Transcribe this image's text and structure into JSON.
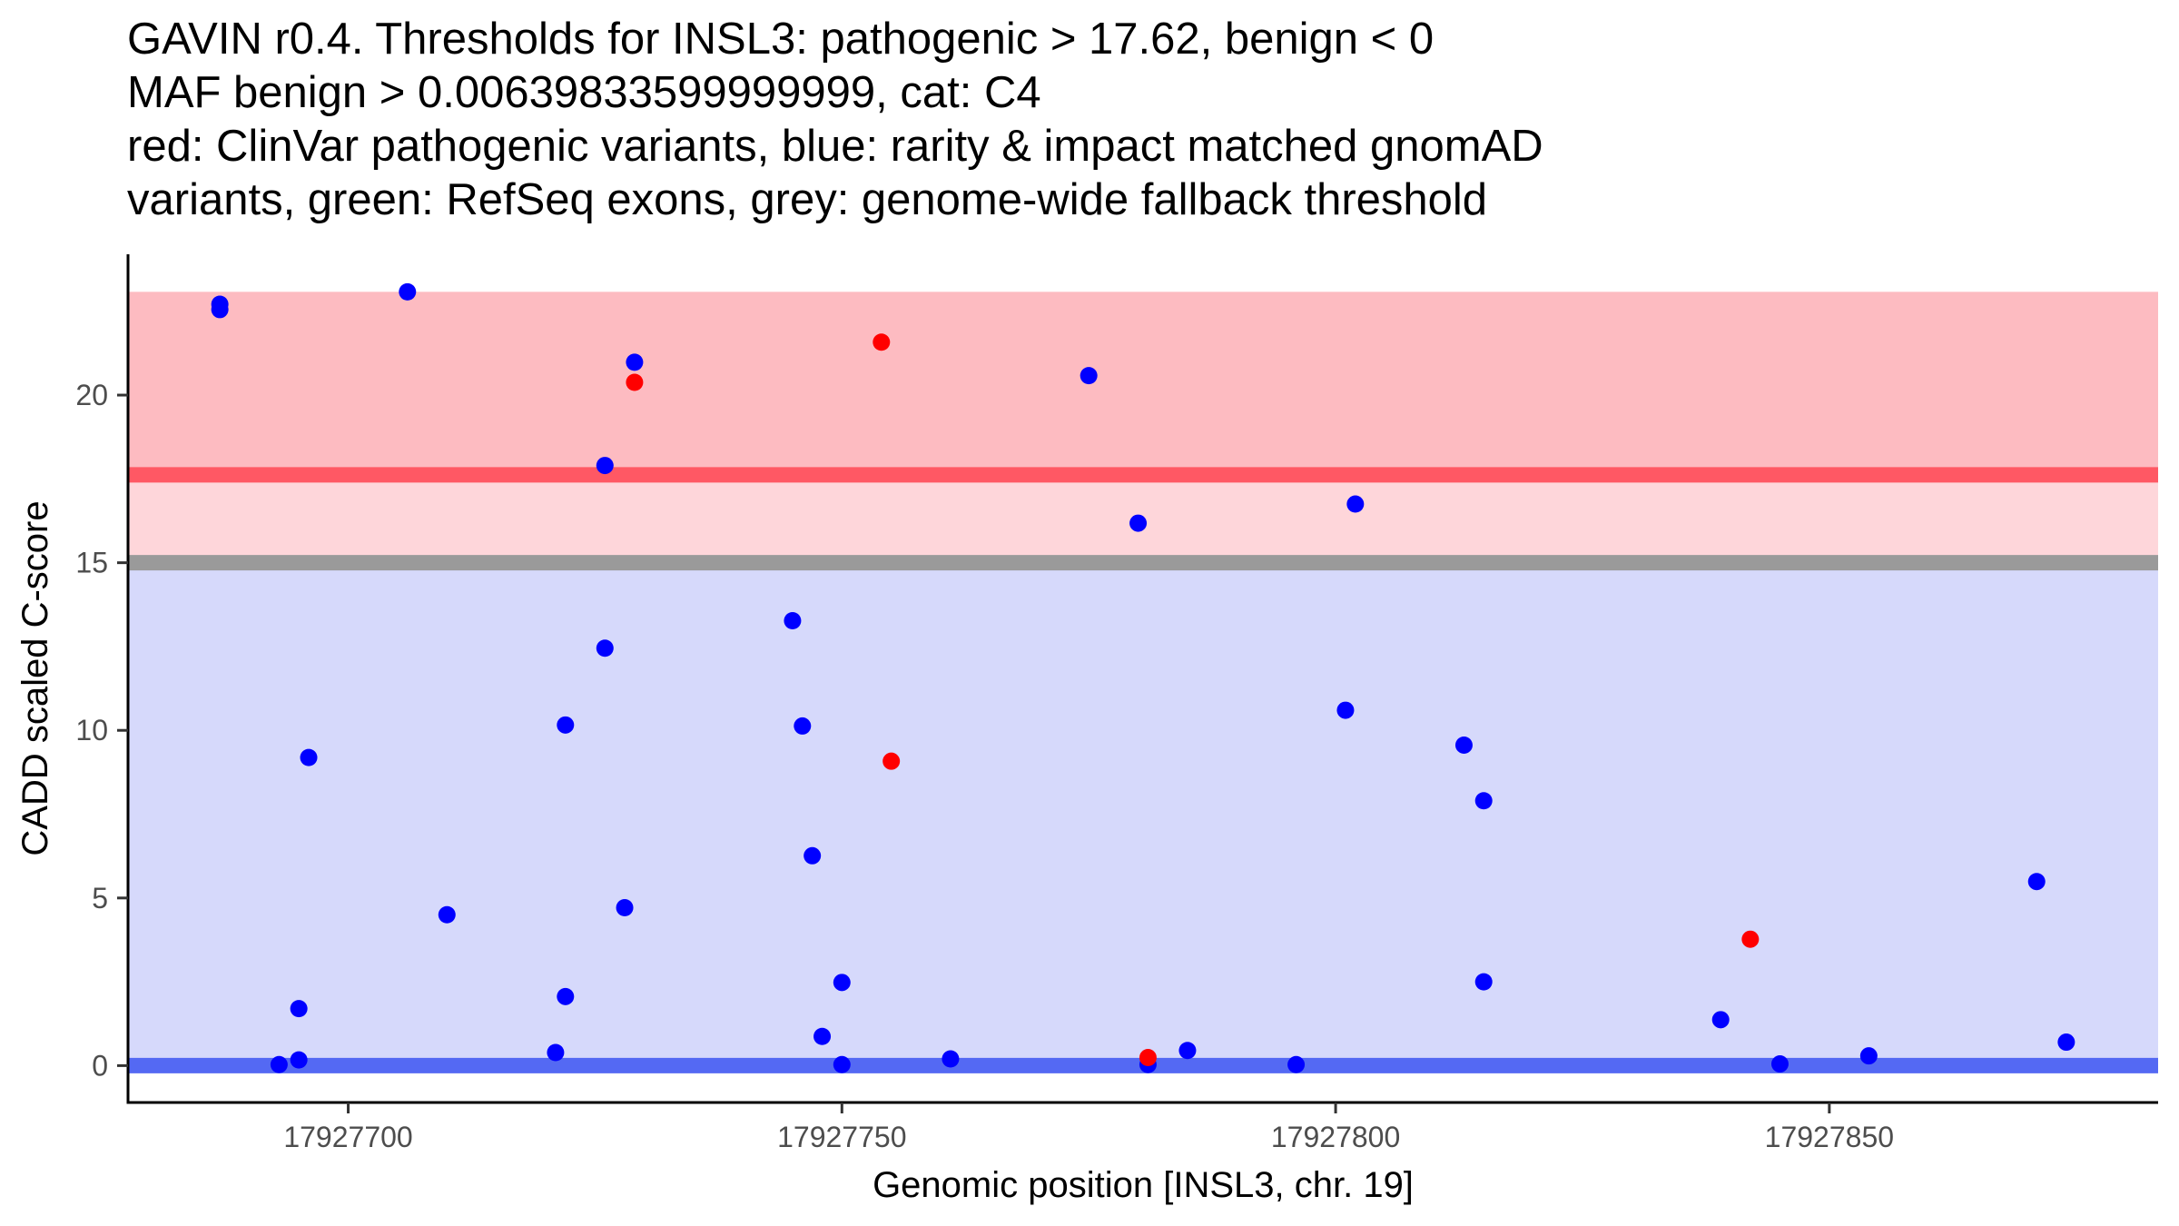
{
  "chart_data": {
    "type": "scatter",
    "title_lines": [
      "GAVIN r0.4. Thresholds for INSL3: pathogenic > 17.62, benign < 0",
      "MAF benign > 0.00639833599999999, cat: C4",
      "red: ClinVar pathogenic variants, blue: rarity & impact matched gnomAD",
      "variants, green: RefSeq exons, grey: genome-wide fallback threshold"
    ],
    "xlabel": "Genomic position [INSL3, chr. 19]",
    "ylabel": "CADD scaled C-score",
    "xlim": [
      17927677.7,
      17927883.3
    ],
    "ylim": [
      -1.1,
      24.2
    ],
    "x_ticks": [
      17927700,
      17927750,
      17927800,
      17927850
    ],
    "x_tick_labels": [
      "17927700",
      "17927750",
      "17927800",
      "17927850"
    ],
    "y_ticks": [
      0,
      5,
      10,
      15,
      20
    ],
    "y_tick_labels": [
      "0",
      "5",
      "10",
      "15",
      "20"
    ],
    "grid": false,
    "legend": "none",
    "bands": [
      {
        "name": "pathogenic-region",
        "ymin": 17.62,
        "ymax": 23.08,
        "color": "#fdbbc1"
      },
      {
        "name": "fallback-to-pathogenic-region",
        "ymin": 15.0,
        "ymax": 17.62,
        "color": "#fed6da"
      },
      {
        "name": "benign-region",
        "ymin": 0.0,
        "ymax": 15.0,
        "color": "#d6d9fb"
      }
    ],
    "threshold_lines": [
      {
        "name": "pathogenic-threshold-line",
        "y": 17.62,
        "color": "#ff5864"
      },
      {
        "name": "genome-wide-fallback-line",
        "y": 15.0,
        "color": "#9a9a9a"
      },
      {
        "name": "benign-threshold-line",
        "y": 0.0,
        "color": "#5469f3"
      }
    ],
    "series": [
      {
        "name": "gnomAD matched variants",
        "color": "#0000ff",
        "points": [
          {
            "x": 17927687,
            "y": 22.71
          },
          {
            "x": 17927687,
            "y": 22.55
          },
          {
            "x": 17927693,
            "y": 0.03
          },
          {
            "x": 17927695,
            "y": 1.7
          },
          {
            "x": 17927695,
            "y": 0.17
          },
          {
            "x": 17927696,
            "y": 9.19
          },
          {
            "x": 17927706,
            "y": 23.08
          },
          {
            "x": 17927710,
            "y": 4.5
          },
          {
            "x": 17927721,
            "y": 0.39
          },
          {
            "x": 17927722,
            "y": 10.16
          },
          {
            "x": 17927722,
            "y": 2.06
          },
          {
            "x": 17927726,
            "y": 17.9
          },
          {
            "x": 17927726,
            "y": 12.45
          },
          {
            "x": 17927728,
            "y": 4.71
          },
          {
            "x": 17927729,
            "y": 20.98
          },
          {
            "x": 17927745,
            "y": 13.27
          },
          {
            "x": 17927746,
            "y": 10.13
          },
          {
            "x": 17927747,
            "y": 6.26
          },
          {
            "x": 17927748,
            "y": 0.87
          },
          {
            "x": 17927750,
            "y": 2.48
          },
          {
            "x": 17927750,
            "y": 0.03
          },
          {
            "x": 17927761,
            "y": 0.2
          },
          {
            "x": 17927775,
            "y": 20.58
          },
          {
            "x": 17927780,
            "y": 16.18
          },
          {
            "x": 17927781,
            "y": 0.03
          },
          {
            "x": 17927785,
            "y": 0.45
          },
          {
            "x": 17927796,
            "y": 0.03
          },
          {
            "x": 17927801,
            "y": 10.6
          },
          {
            "x": 17927802,
            "y": 16.75
          },
          {
            "x": 17927813,
            "y": 9.56
          },
          {
            "x": 17927815,
            "y": 7.9
          },
          {
            "x": 17927815,
            "y": 2.5
          },
          {
            "x": 17927839,
            "y": 1.37
          },
          {
            "x": 17927845,
            "y": 0.05
          },
          {
            "x": 17927854,
            "y": 0.29
          },
          {
            "x": 17927871,
            "y": 5.49
          },
          {
            "x": 17927874,
            "y": 0.7
          }
        ]
      },
      {
        "name": "ClinVar pathogenic variants",
        "color": "#ff0000",
        "points": [
          {
            "x": 17927729,
            "y": 20.38
          },
          {
            "x": 17927754,
            "y": 21.58
          },
          {
            "x": 17927755,
            "y": 9.08
          },
          {
            "x": 17927781,
            "y": 0.24
          },
          {
            "x": 17927842,
            "y": 3.77
          }
        ]
      }
    ]
  }
}
